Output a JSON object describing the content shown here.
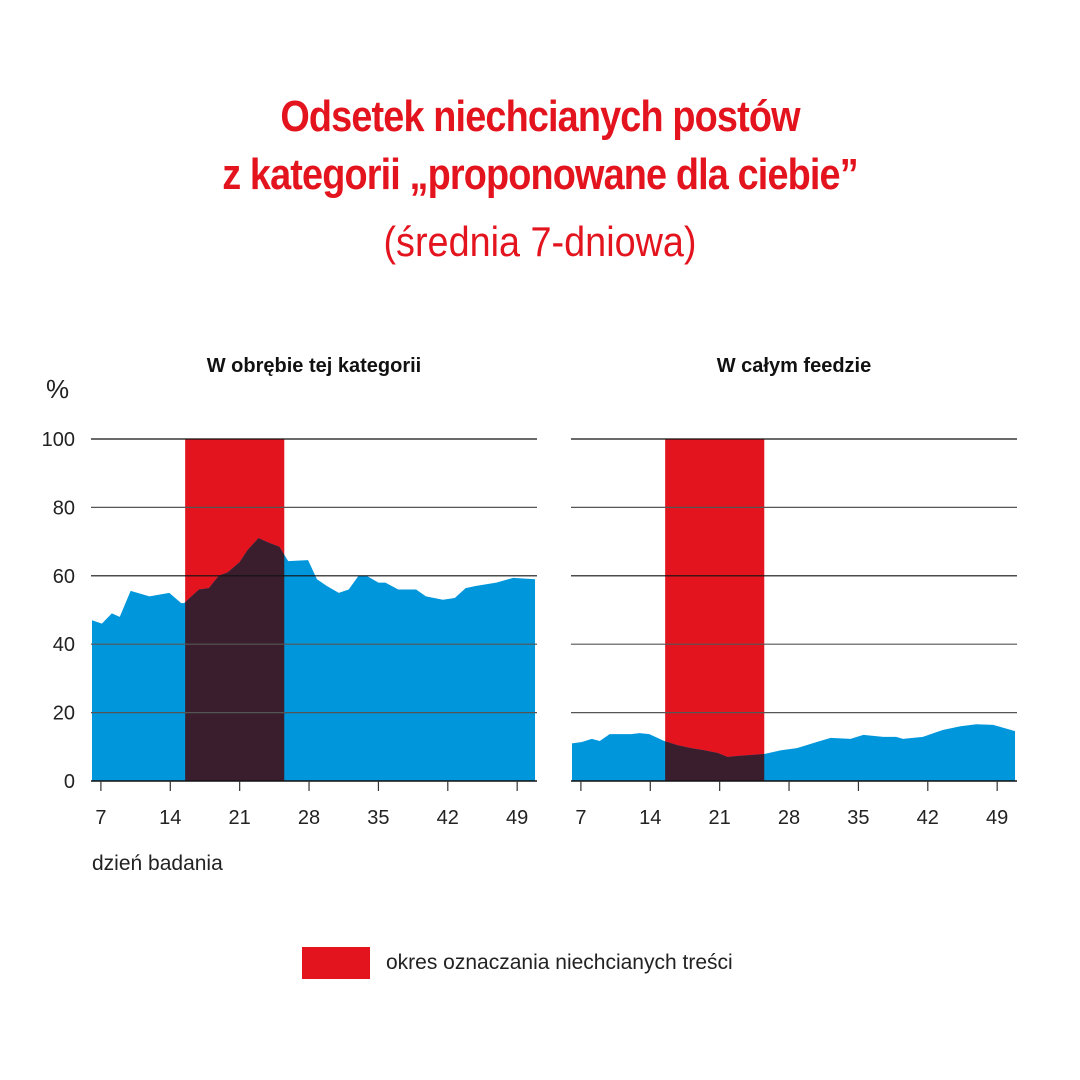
{
  "title": {
    "line1": "Odsetek niechcianych postów",
    "line2": "z kategorii „proponowane dla ciebie”",
    "subtitle": "(średnia 7-dniowa)"
  },
  "legend": {
    "label": "okres oznaczania niechcianych treści",
    "color": "#e3141e"
  },
  "colors": {
    "area": "#0096dc",
    "overlap": "#3a1e2e",
    "highlight": "#e3141e",
    "title": "#e3141e"
  },
  "chart_data": [
    {
      "type": "area",
      "title": "W obrębie tej kategorii",
      "ylabel": "%",
      "xlabel": "dzień badania",
      "ylim": [
        0,
        100
      ],
      "xlim": [
        6,
        51
      ],
      "yticks": [
        "0",
        "20",
        "40",
        "60",
        "80",
        "100"
      ],
      "xticks": [
        "7",
        "14",
        "21",
        "28",
        "35",
        "42",
        "49"
      ],
      "highlight": [
        15.5,
        25.5
      ],
      "x": [
        6.1,
        7.1,
        8.1,
        8.9,
        10,
        11.9,
        13.9,
        15.1,
        15.4,
        16.9,
        17.9,
        18.9,
        19.8,
        21,
        21.8,
        22.9,
        24,
        25,
        25.9,
        27.9,
        28.8,
        29.8,
        31,
        32,
        33,
        33.8,
        35,
        35.7,
        37,
        38.8,
        39.8,
        41.5,
        42.7,
        43.8,
        44.8,
        46.9,
        48.6,
        50.8
      ],
      "y": [
        47,
        46,
        49,
        48,
        55.6,
        54,
        55,
        52,
        52,
        56,
        56.4,
        60,
        61,
        64,
        67.5,
        71,
        69.6,
        68.5,
        64.3,
        64.6,
        59,
        57,
        55,
        56,
        60,
        60,
        58,
        58,
        56,
        56,
        54,
        53,
        53.5,
        56.4,
        57,
        58,
        59.4,
        59
      ]
    },
    {
      "type": "area",
      "title": "W całym feedzie",
      "ylim": [
        0,
        100
      ],
      "xlim": [
        6,
        51
      ],
      "xticks": [
        "7",
        "14",
        "21",
        "28",
        "35",
        "42",
        "49"
      ],
      "highlight": [
        15.5,
        25.5
      ],
      "x": [
        6.1,
        7.1,
        8.1,
        8.9,
        9.9,
        12.1,
        12.9,
        13.9,
        15.4,
        16.7,
        18.1,
        19.4,
        20.8,
        21.8,
        22.8,
        24.2,
        25.5,
        27.2,
        28.8,
        30.8,
        32.2,
        34.2,
        35.5,
        37.5,
        38.8,
        39.5,
        41.5,
        43.5,
        45.3,
        46.9,
        48.6,
        50.8
      ],
      "y": [
        11,
        11.4,
        12.3,
        11.7,
        13.7,
        13.7,
        14,
        13.7,
        11.7,
        10.5,
        9.6,
        9,
        8.2,
        7,
        7.3,
        7.6,
        7.9,
        9,
        9.6,
        11.4,
        12.6,
        12.3,
        13.5,
        12.9,
        12.9,
        12.3,
        12.9,
        14.9,
        16,
        16.6,
        16.4,
        14.6
      ]
    }
  ]
}
